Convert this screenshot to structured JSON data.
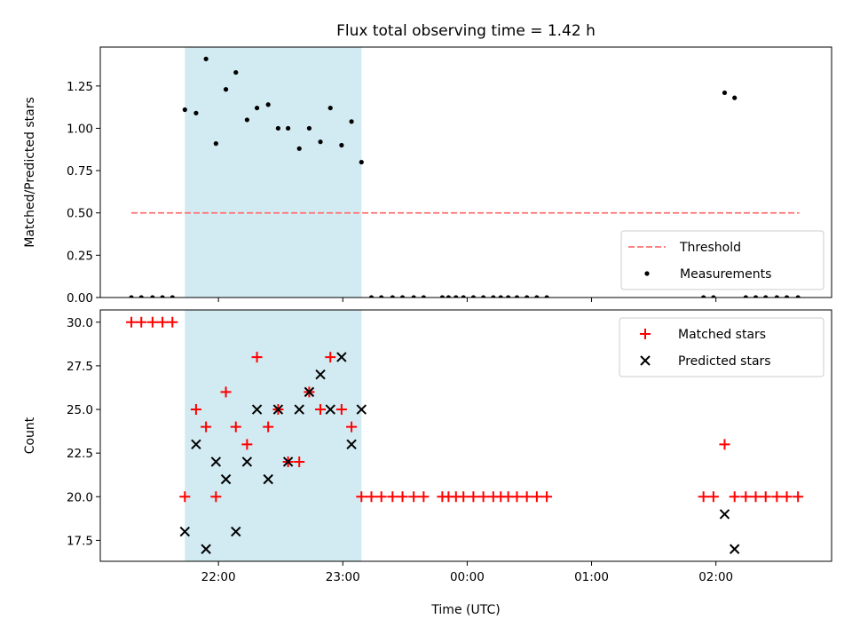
{
  "chart_data": {
    "type": "scatter",
    "title": "Flux total observing time = 1.42 h",
    "xlabel": "Time (UTC)",
    "x_unit": "hours after 00:00 UTC (negative = previous day)",
    "x_ticks": [
      {
        "value": -2,
        "label": "22:00"
      },
      {
        "value": -1,
        "label": "23:00"
      },
      {
        "value": 0,
        "label": "00:00"
      },
      {
        "value": 1,
        "label": "01:00"
      },
      {
        "value": 2,
        "label": "02:00"
      }
    ],
    "xlim": [
      -2.95,
      2.93
    ],
    "shaded_interval": {
      "x": [
        -2.27,
        -0.85
      ],
      "color": "#add8e6"
    },
    "panels": [
      {
        "ylabel": "Matched/Predicted stars",
        "ylim": [
          0,
          1.48
        ],
        "y_ticks": [
          "0.00",
          "0.25",
          "0.50",
          "0.75",
          "1.00",
          "1.25"
        ],
        "legend_position": "lower right",
        "threshold": {
          "name": "Threshold",
          "y": 0.5,
          "x": [
            -2.7,
            2.67
          ],
          "color": "#ff7070",
          "style": "dashed"
        },
        "series": [
          {
            "name": "Measurements",
            "color": "#000000",
            "marker": "dot",
            "points": [
              [
                -2.7,
                0
              ],
              [
                -2.62,
                0
              ],
              [
                -2.53,
                0
              ],
              [
                -2.45,
                0
              ],
              [
                -2.37,
                0
              ],
              [
                -2.27,
                1.11
              ],
              [
                -2.18,
                1.09
              ],
              [
                -2.1,
                1.41
              ],
              [
                -2.02,
                0.91
              ],
              [
                -1.94,
                1.23
              ],
              [
                -1.86,
                1.33
              ],
              [
                -1.77,
                1.05
              ],
              [
                -1.69,
                1.12
              ],
              [
                -1.6,
                1.14
              ],
              [
                -1.52,
                1.0
              ],
              [
                -1.44,
                1.0
              ],
              [
                -1.35,
                0.88
              ],
              [
                -1.27,
                1.0
              ],
              [
                -1.18,
                0.92
              ],
              [
                -1.1,
                1.12
              ],
              [
                -1.01,
                0.9
              ],
              [
                -0.93,
                1.04
              ],
              [
                -0.85,
                0.8
              ],
              [
                -0.77,
                0
              ],
              [
                -0.69,
                0
              ],
              [
                -0.6,
                0
              ],
              [
                -0.52,
                0
              ],
              [
                -0.43,
                0
              ],
              [
                -0.35,
                0
              ],
              [
                -0.2,
                0
              ],
              [
                -0.15,
                0
              ],
              [
                -0.09,
                0
              ],
              [
                -0.03,
                0
              ],
              [
                0.05,
                0
              ],
              [
                0.13,
                0
              ],
              [
                0.21,
                0
              ],
              [
                0.27,
                0
              ],
              [
                0.33,
                0
              ],
              [
                0.4,
                0
              ],
              [
                0.48,
                0
              ],
              [
                0.56,
                0
              ],
              [
                0.64,
                0
              ],
              [
                1.9,
                0
              ],
              [
                1.98,
                0
              ],
              [
                2.07,
                1.21
              ],
              [
                2.15,
                1.18
              ],
              [
                2.24,
                0
              ],
              [
                2.32,
                0
              ],
              [
                2.4,
                0
              ],
              [
                2.49,
                0
              ],
              [
                2.57,
                0
              ],
              [
                2.66,
                0
              ]
            ]
          }
        ]
      },
      {
        "ylabel": "Count",
        "ylim": [
          16.3,
          30.7
        ],
        "y_ticks": [
          "17.5",
          "20.0",
          "22.5",
          "25.0",
          "27.5",
          "30.0"
        ],
        "legend_position": "upper right",
        "series": [
          {
            "name": "Matched stars",
            "color": "#ff0000",
            "marker": "plus",
            "points": [
              [
                -2.7,
                30
              ],
              [
                -2.62,
                30
              ],
              [
                -2.53,
                30
              ],
              [
                -2.45,
                30
              ],
              [
                -2.37,
                30
              ],
              [
                -2.27,
                20
              ],
              [
                -2.18,
                25
              ],
              [
                -2.1,
                24
              ],
              [
                -2.02,
                20
              ],
              [
                -1.94,
                26
              ],
              [
                -1.86,
                24
              ],
              [
                -1.77,
                23
              ],
              [
                -1.69,
                28
              ],
              [
                -1.6,
                24
              ],
              [
                -1.52,
                25
              ],
              [
                -1.44,
                22
              ],
              [
                -1.35,
                22
              ],
              [
                -1.27,
                26
              ],
              [
                -1.18,
                25
              ],
              [
                -1.1,
                28
              ],
              [
                -1.01,
                25
              ],
              [
                -0.93,
                24
              ],
              [
                -0.85,
                20
              ],
              [
                -0.77,
                20
              ],
              [
                -0.69,
                20
              ],
              [
                -0.6,
                20
              ],
              [
                -0.52,
                20
              ],
              [
                -0.43,
                20
              ],
              [
                -0.35,
                20
              ],
              [
                -0.2,
                20
              ],
              [
                -0.15,
                20
              ],
              [
                -0.09,
                20
              ],
              [
                -0.03,
                20
              ],
              [
                0.05,
                20
              ],
              [
                0.13,
                20
              ],
              [
                0.21,
                20
              ],
              [
                0.27,
                20
              ],
              [
                0.33,
                20
              ],
              [
                0.4,
                20
              ],
              [
                0.48,
                20
              ],
              [
                0.56,
                20
              ],
              [
                0.64,
                20
              ],
              [
                1.9,
                20
              ],
              [
                1.98,
                20
              ],
              [
                2.07,
                23
              ],
              [
                2.15,
                20
              ],
              [
                2.24,
                20
              ],
              [
                2.32,
                20
              ],
              [
                2.4,
                20
              ],
              [
                2.49,
                20
              ],
              [
                2.57,
                20
              ],
              [
                2.66,
                20
              ]
            ]
          },
          {
            "name": "Predicted stars",
            "color": "#000000",
            "marker": "x",
            "points": [
              [
                -2.27,
                18
              ],
              [
                -2.18,
                23
              ],
              [
                -2.1,
                17
              ],
              [
                -2.02,
                22
              ],
              [
                -1.94,
                21
              ],
              [
                -1.86,
                18
              ],
              [
                -1.77,
                22
              ],
              [
                -1.69,
                25
              ],
              [
                -1.6,
                21
              ],
              [
                -1.52,
                25
              ],
              [
                -1.44,
                22
              ],
              [
                -1.35,
                25
              ],
              [
                -1.27,
                26
              ],
              [
                -1.18,
                27
              ],
              [
                -1.1,
                25
              ],
              [
                -1.01,
                28
              ],
              [
                -0.93,
                23
              ],
              [
                -0.85,
                25
              ],
              [
                2.07,
                19
              ],
              [
                2.15,
                17
              ]
            ]
          }
        ]
      }
    ]
  }
}
